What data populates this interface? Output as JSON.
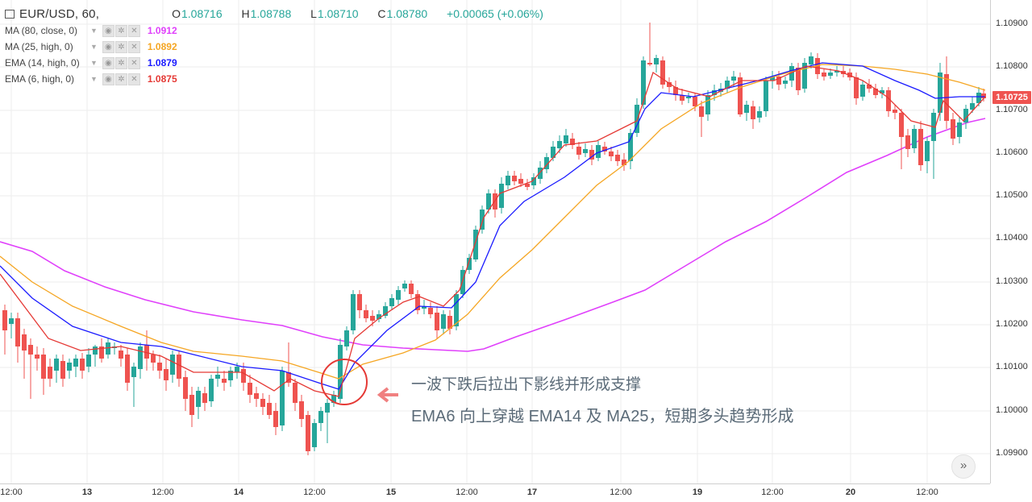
{
  "header": {
    "symbol": "EUR/USD, 60,",
    "ohlc": [
      {
        "key": "O",
        "value": "1.08716"
      },
      {
        "key": "H",
        "value": "1.08788"
      },
      {
        "key": "L",
        "value": "1.08710"
      },
      {
        "key": "C",
        "value": "1.08780"
      }
    ],
    "change": "+0.00065 (+0.06%)"
  },
  "indicators": [
    {
      "id": "ma80",
      "name": "MA (80, close, 0)",
      "value": "1.0912",
      "color": "#e040fb"
    },
    {
      "id": "ma25",
      "name": "MA (25, high, 0)",
      "value": "1.0892",
      "color": "#f5a623"
    },
    {
      "id": "ema14",
      "name": "EMA (14, high, 0)",
      "value": "1.0879",
      "color": "#1a1aff"
    },
    {
      "id": "ema6",
      "name": "EMA (6, high, 0)",
      "value": "1.0875",
      "color": "#e53935"
    }
  ],
  "price_axis": {
    "labels": [
      "1.10900",
      "1.10800",
      "1.10700",
      "1.10600",
      "1.10500",
      "1.10400",
      "1.10300",
      "1.10200",
      "1.10100",
      "1.10000",
      "1.09900"
    ],
    "current": "1.10725"
  },
  "time_axis": {
    "labels": [
      {
        "text": "12:00",
        "day": false
      },
      {
        "text": "13",
        "day": true
      },
      {
        "text": "12:00",
        "day": false
      },
      {
        "text": "14",
        "day": true
      },
      {
        "text": "12:00",
        "day": false
      },
      {
        "text": "15",
        "day": true
      },
      {
        "text": "12:00",
        "day": false
      },
      {
        "text": "17",
        "day": true
      },
      {
        "text": "12:00",
        "day": false
      },
      {
        "text": "19",
        "day": true
      },
      {
        "text": "12:00",
        "day": false
      },
      {
        "text": "20",
        "day": true
      },
      {
        "text": "12:00",
        "day": false
      }
    ]
  },
  "annotations": {
    "line1": "一波下跌后拉出下影线并形成支撑",
    "line2": "EMA6 向上穿越 EMA14 及 MA25，短期多头趋势形成",
    "circle_color": "#e53935",
    "arrow_color": "#f08080"
  },
  "colors": {
    "up": "#26a69a",
    "down": "#ef5350",
    "grid": "#eeeeee"
  },
  "scroll_icon": "double-chevron-right-icon"
}
